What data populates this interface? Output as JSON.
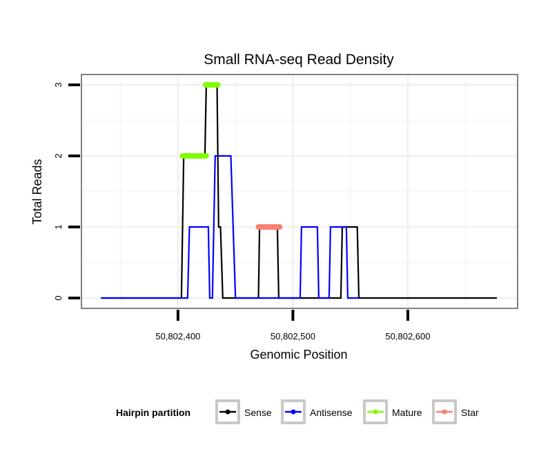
{
  "chart_data": {
    "type": "line",
    "title": "Small RNA-seq Read Density",
    "xlabel": "Genomic Position",
    "ylabel": "Total Reads",
    "xlim": [
      50802316,
      50802695.5
    ],
    "ylim": [
      -0.146,
      3.146
    ],
    "grid": true,
    "x_ticks": [
      50802400,
      50802500,
      50802600
    ],
    "x_tick_labels": [
      "50,802,400",
      "50,802,500",
      "50,802,600"
    ],
    "y_ticks": [
      0,
      1,
      2,
      3
    ],
    "y_tick_labels": [
      "0",
      "1",
      "2",
      "3"
    ],
    "legend": {
      "title": "Hairpin partition",
      "placement": "bottom",
      "entries": [
        {
          "name": "Sense",
          "color": "#000000"
        },
        {
          "name": "Antisense",
          "color": "#0000ff"
        },
        {
          "name": "Mature",
          "color": "#7fff00"
        },
        {
          "name": "Star",
          "color": "#fa8072"
        }
      ]
    },
    "series": [
      {
        "name": "Sense",
        "color": "#000000",
        "points": [
          [
            50802333,
            0
          ],
          [
            50802403,
            0
          ],
          [
            50802405,
            2
          ],
          [
            50802423.4,
            2
          ],
          [
            50802424.6,
            3
          ],
          [
            50802434,
            3
          ],
          [
            50802435.4,
            1
          ],
          [
            50802437,
            1
          ],
          [
            50802439,
            0
          ],
          [
            50802470,
            0
          ],
          [
            50802471,
            1
          ],
          [
            50802486.5,
            1
          ],
          [
            50802487.7,
            0
          ],
          [
            50802541.7,
            0
          ],
          [
            50802543,
            1
          ],
          [
            50802556,
            1
          ],
          [
            50802557.4,
            0
          ],
          [
            50802677.5,
            0
          ]
        ]
      },
      {
        "name": "Antisense",
        "color": "#0000ff",
        "points": [
          [
            50802333,
            0
          ],
          [
            50802408.4,
            0
          ],
          [
            50802410,
            1
          ],
          [
            50802426.4,
            1
          ],
          [
            50802427.6,
            0
          ],
          [
            50802430,
            0
          ],
          [
            50802432.4,
            2
          ],
          [
            50802446,
            2
          ],
          [
            50802448,
            1
          ],
          [
            50802450,
            0
          ],
          [
            50802506.3,
            0
          ],
          [
            50802507.5,
            1
          ],
          [
            50802521.3,
            1
          ],
          [
            50802522.5,
            0
          ],
          [
            50802531.5,
            0
          ],
          [
            50802532.7,
            1
          ],
          [
            50802546.5,
            1
          ],
          [
            50802547.7,
            0
          ],
          [
            50802557,
            0
          ]
        ]
      },
      {
        "name": "Mature",
        "color": "#7fff00",
        "segments": [
          [
            [
              50802404,
              2
            ],
            [
              50802424.5,
              2
            ]
          ],
          [
            [
              50802424,
              3
            ],
            [
              50802434.5,
              3
            ]
          ]
        ]
      },
      {
        "name": "Star",
        "color": "#fa8072",
        "segments": [
          [
            [
              50802470,
              1
            ],
            [
              50802488.5,
              1
            ]
          ]
        ]
      }
    ]
  }
}
